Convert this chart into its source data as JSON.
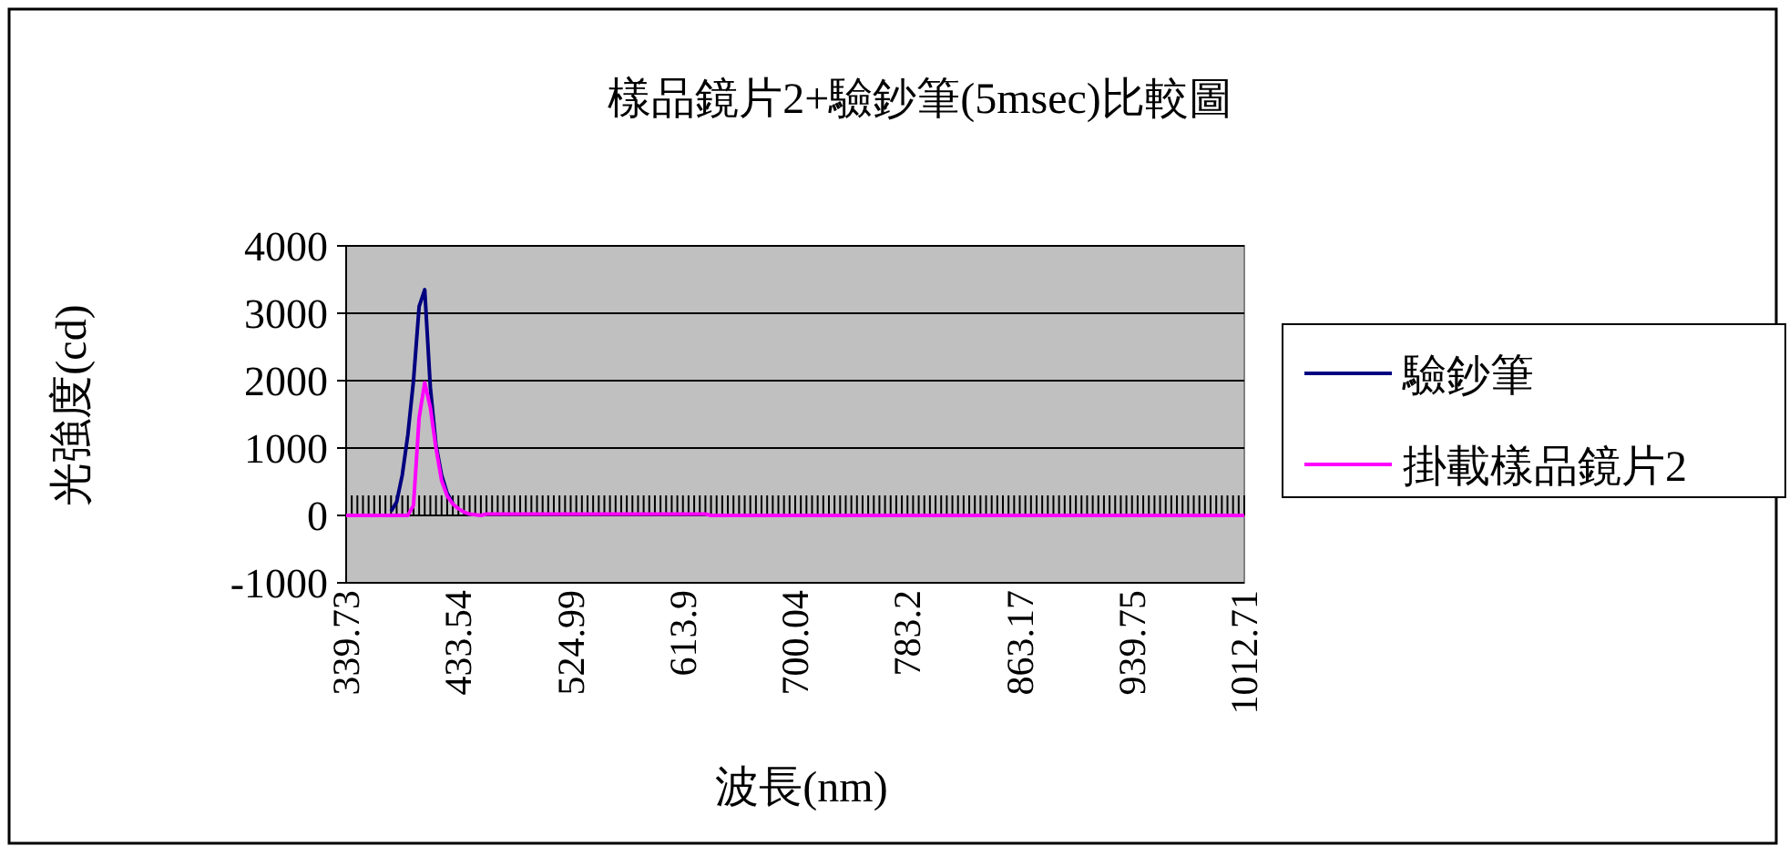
{
  "chart_data": {
    "type": "line",
    "title": "樣品鏡片2+驗鈔筆(5msec)比較圖",
    "xlabel": "波長(nm)",
    "ylabel": "光強度(cd)",
    "categories": [
      "339.73",
      null,
      null,
      null,
      null,
      null,
      null,
      null,
      null,
      null,
      null,
      null,
      null,
      null,
      null,
      null,
      null,
      null,
      null,
      null,
      "433.54",
      null,
      null,
      null,
      null,
      null,
      null,
      null,
      null,
      null,
      null,
      null,
      null,
      null,
      null,
      null,
      null,
      null,
      null,
      null,
      "524.99",
      null,
      null,
      null,
      null,
      null,
      null,
      null,
      null,
      null,
      null,
      null,
      null,
      null,
      null,
      null,
      null,
      null,
      null,
      null,
      "613.9",
      null,
      null,
      null,
      null,
      null,
      null,
      null,
      null,
      null,
      null,
      null,
      null,
      null,
      null,
      null,
      null,
      null,
      null,
      null,
      "700.04",
      null,
      null,
      null,
      null,
      null,
      null,
      null,
      null,
      null,
      null,
      null,
      null,
      null,
      null,
      null,
      null,
      null,
      null,
      null,
      "783.2",
      null,
      null,
      null,
      null,
      null,
      null,
      null,
      null,
      null,
      null,
      null,
      null,
      null,
      null,
      null,
      null,
      null,
      null,
      null,
      "863.17",
      null,
      null,
      null,
      null,
      null,
      null,
      null,
      null,
      null,
      null,
      null,
      null,
      null,
      null,
      null,
      null,
      null,
      null,
      null,
      "939.75",
      null,
      null,
      null,
      null,
      null,
      null,
      null,
      null,
      null,
      null,
      null,
      null,
      null,
      null,
      null,
      null,
      null,
      null,
      null,
      "1012.71"
    ],
    "series": [
      {
        "name": "驗鈔筆",
        "color": "#000080",
        "values": [
          null,
          null,
          null,
          null,
          null,
          null,
          null,
          null,
          60,
          200,
          600,
          1200,
          2000,
          3100,
          3350,
          1900,
          1050,
          600,
          330,
          180,
          null,
          null,
          null,
          null,
          null,
          null,
          null,
          null,
          null,
          null,
          null,
          null,
          null,
          null,
          null,
          null,
          null,
          null,
          null,
          null,
          null,
          null,
          null,
          null,
          null,
          null,
          null,
          null,
          null,
          null,
          null,
          null,
          null,
          null,
          null,
          null,
          null,
          null,
          null,
          null,
          null,
          null,
          null,
          null,
          null,
          null,
          null,
          null,
          null,
          null,
          null,
          null,
          null,
          null,
          null,
          null,
          null,
          null,
          null,
          null,
          null,
          null,
          null,
          null,
          null,
          null,
          null,
          null,
          null,
          null,
          null,
          null,
          null,
          null,
          null,
          null,
          null,
          null,
          null,
          null,
          null,
          null,
          null,
          null,
          null,
          null,
          null,
          null,
          null,
          null,
          null,
          null,
          null,
          null,
          null,
          null,
          null,
          null,
          null,
          null,
          null,
          null,
          null,
          null,
          null,
          null,
          null,
          null,
          null,
          null,
          null,
          null,
          null,
          null,
          null,
          null,
          null,
          null,
          null,
          null,
          null,
          null,
          null,
          null,
          null,
          null,
          null,
          null,
          null,
          null,
          null,
          null,
          null,
          null,
          null,
          null,
          null,
          null,
          null,
          null,
          null
        ]
      },
      {
        "name": "掛載樣品鏡片2",
        "color": "#ff00ff",
        "values": [
          0,
          0,
          0,
          0,
          0,
          0,
          0,
          0,
          0,
          0,
          0,
          0,
          150,
          1450,
          1970,
          1600,
          1000,
          520,
          290,
          170,
          100,
          50,
          20,
          10,
          0,
          20,
          20,
          20,
          20,
          20,
          20,
          20,
          20,
          20,
          20,
          20,
          20,
          20,
          20,
          20,
          20,
          20,
          20,
          20,
          20,
          20,
          20,
          20,
          20,
          20,
          20,
          20,
          20,
          20,
          20,
          20,
          20,
          20,
          20,
          20,
          20,
          20,
          20,
          20,
          20,
          0,
          0,
          0,
          0,
          0,
          0,
          0,
          0,
          0,
          0,
          0,
          0,
          0,
          0,
          0,
          0,
          0,
          0,
          0,
          0,
          0,
          0,
          0,
          0,
          0,
          0,
          0,
          0,
          0,
          0,
          0,
          0,
          0,
          0,
          0,
          0,
          0,
          0,
          0,
          0,
          0,
          0,
          0,
          0,
          0,
          0,
          0,
          0,
          0,
          0,
          0,
          0,
          0,
          0,
          0,
          0,
          0,
          0,
          0,
          0,
          0,
          0,
          0,
          0,
          0,
          0,
          0,
          0,
          0,
          0,
          0,
          0,
          0,
          0,
          0,
          0,
          0,
          0,
          0,
          0,
          0,
          0,
          0,
          0,
          0,
          0,
          0,
          0,
          0,
          0,
          0,
          0,
          0,
          0,
          0,
          0
        ]
      }
    ],
    "ylim": [
      -1000,
      4000
    ],
    "yticks": [
      -1000,
      0,
      1000,
      2000,
      3000,
      4000
    ],
    "grid": "y",
    "legend": "right"
  }
}
